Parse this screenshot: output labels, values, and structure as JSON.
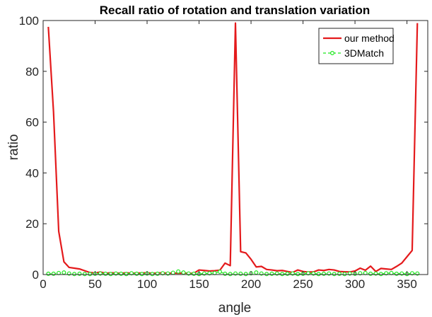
{
  "chart_data": {
    "type": "line",
    "title": "Recall ratio of rotation and translation variation",
    "xlabel": "angle",
    "ylabel": "ratio",
    "xlim": [
      0,
      370
    ],
    "ylim": [
      0,
      100
    ],
    "xticks": [
      0,
      50,
      100,
      150,
      200,
      250,
      300,
      350
    ],
    "yticks": [
      0,
      20,
      40,
      60,
      80,
      100
    ],
    "legend_position": "top-right",
    "grid": false,
    "x": [
      5,
      10,
      15,
      20,
      25,
      30,
      35,
      40,
      45,
      50,
      55,
      60,
      65,
      70,
      75,
      80,
      85,
      90,
      95,
      100,
      105,
      110,
      115,
      120,
      125,
      130,
      135,
      140,
      145,
      150,
      155,
      160,
      165,
      170,
      175,
      180,
      185,
      190,
      195,
      200,
      205,
      210,
      215,
      220,
      225,
      230,
      235,
      240,
      245,
      250,
      255,
      260,
      265,
      270,
      275,
      280,
      285,
      290,
      295,
      300,
      305,
      310,
      315,
      320,
      325,
      330,
      335,
      340,
      345,
      350,
      355,
      360
    ],
    "series": [
      {
        "name": "our method",
        "color": "#e41a1c",
        "marker": "none",
        "values": [
          97.5,
          64,
          17,
          5,
          2.8,
          2.5,
          2.2,
          1.5,
          0.8,
          0.6,
          1.0,
          0.5,
          0.7,
          0.6,
          0.5,
          0.7,
          0.5,
          0.6,
          0.6,
          0.7,
          0.5,
          0.6,
          0.7,
          0.5,
          0.6,
          0.5,
          0.6,
          0.5,
          0.5,
          1.8,
          1.6,
          1.4,
          1.5,
          1.7,
          4.5,
          3.5,
          99,
          9,
          8.5,
          6,
          3,
          3.2,
          2,
          1.8,
          1.5,
          1.6,
          1.2,
          0.8,
          1.8,
          1.2,
          1.0,
          1.0,
          1.8,
          1.6,
          2.0,
          1.8,
          1.2,
          1.1,
          1.0,
          1.4,
          2.5,
          1.7,
          3.3,
          1.2,
          2.4,
          2.2,
          2.0,
          3.2,
          4.5,
          7,
          9.5,
          99
        ]
      },
      {
        "name": "3DMatch",
        "color": "#1ee81e",
        "marker": "circle",
        "values": [
          0.3,
          0.3,
          0.6,
          0.8,
          0.4,
          0.2,
          0.3,
          0.2,
          0.2,
          0.3,
          0.4,
          0.3,
          0.2,
          0.4,
          0.3,
          0.2,
          0.5,
          0.3,
          0.2,
          0.4,
          0.2,
          0.3,
          0.5,
          0.4,
          0.7,
          1.2,
          0.8,
          0.4,
          0.3,
          0.2,
          0.4,
          0.5,
          0.6,
          1.1,
          0.3,
          0.2,
          0.4,
          0.3,
          0.2,
          0.5,
          0.8,
          0.4,
          0.2,
          0.3,
          0.4,
          0.2,
          0.3,
          0.4,
          0.2,
          0.3,
          0.5,
          0.4,
          0.2,
          0.3,
          0.4,
          0.2,
          0.3,
          0.2,
          0.4,
          0.3,
          0.5,
          0.6,
          0.3,
          0.4,
          0.2,
          0.5,
          0.6,
          0.3,
          0.4,
          0.2,
          0.5,
          0.4
        ]
      }
    ]
  }
}
